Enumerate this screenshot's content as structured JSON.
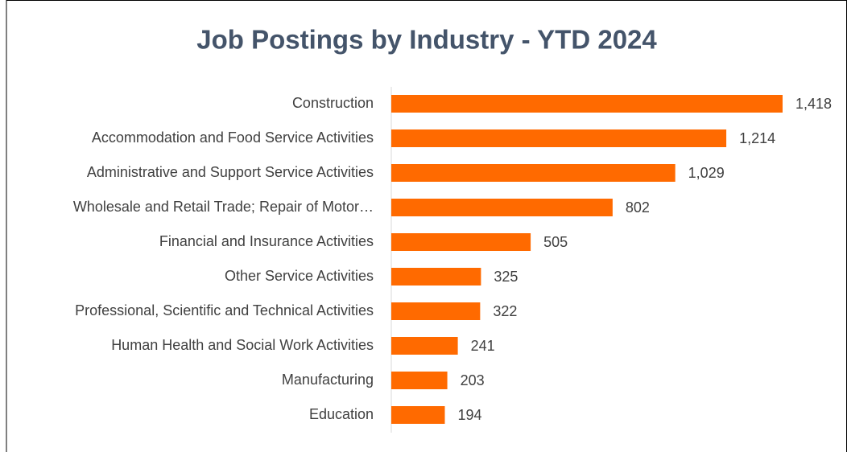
{
  "chart_data": {
    "type": "bar",
    "orientation": "horizontal",
    "title": "Job Postings by Industry - YTD 2024",
    "categories": [
      "Construction",
      "Accommodation and Food Service Activities",
      "Administrative and Support Service Activities",
      "Wholesale and Retail Trade; Repair of Motor…",
      "Financial and Insurance Activities",
      "Other Service Activities",
      "Professional, Scientific and Technical Activities",
      "Human Health and Social Work Activities",
      "Manufacturing",
      "Education"
    ],
    "values": [
      1418,
      1214,
      1029,
      802,
      505,
      325,
      322,
      241,
      203,
      194
    ],
    "value_labels": [
      "1,418",
      "1,214",
      "1,029",
      "802",
      "505",
      "325",
      "322",
      "241",
      "203",
      "194"
    ],
    "color": "#ff6a00"
  }
}
